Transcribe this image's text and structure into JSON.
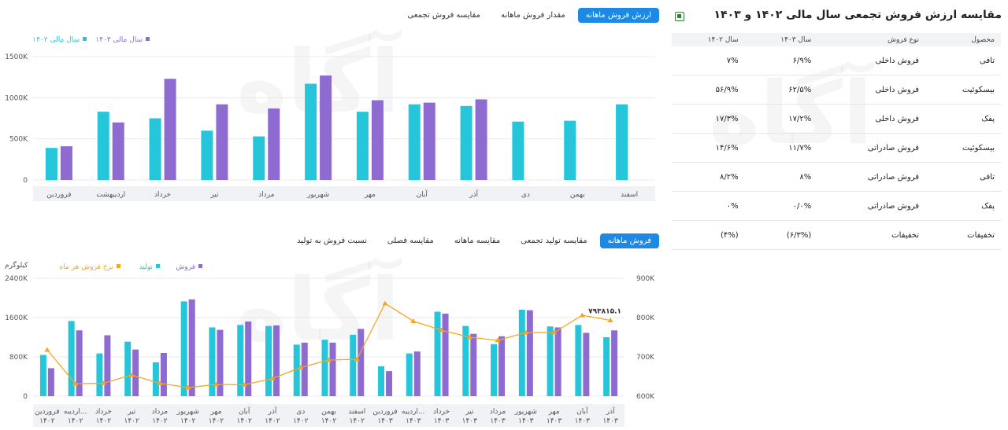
{
  "top_tabs": {
    "items": [
      "ارزش فروش ماهانه",
      "مقدار فروش ماهانه",
      "مقایسه فروش تجمعی"
    ],
    "active": 0
  },
  "bottom_tabs": {
    "items": [
      "فروش ماهانه",
      "مقایسه تولید تجمعی",
      "مقایسه ماهانه",
      "مقایسه فصلی",
      "نسبت فروش به تولید"
    ],
    "active": 0
  },
  "right_panel": {
    "title": "مقایسه ارزش فروش تجمعی سال مالی ۱۴۰۲ و ۱۴۰۳",
    "export_icon": "excel-icon",
    "columns": [
      "محصول",
      "نوع فروش",
      "سال ۱۴۰۳",
      "سال ۱۴۰۲"
    ],
    "rows": [
      [
        "تافی",
        "فروش داخلی",
        "۶/۹%",
        "۷%"
      ],
      [
        "بیسکوئیت",
        "فروش داخلی",
        "۶۲/۵%",
        "۵۶/۹%"
      ],
      [
        "پفک",
        "فروش داخلی",
        "۱۷/۲%",
        "۱۷/۳%"
      ],
      [
        "بیسکوئیت",
        "فروش صادراتی",
        "۱۱/۷%",
        "۱۴/۶%"
      ],
      [
        "تافی",
        "فروش صادراتی",
        "۸%",
        "۸/۲%"
      ],
      [
        "پفک",
        "فروش صادراتی",
        "۰/۰%",
        "۰%"
      ],
      [
        "تخفیفات",
        "تخفیفات",
        "(۶/۳%)",
        "(۴%)"
      ]
    ]
  },
  "watermark": "آگاه",
  "chart_data": [
    {
      "type": "bar",
      "legend": [
        {
          "name": "سال مالی ۱۴۰۳",
          "color": "#8e6bd1"
        },
        {
          "name": "سال مالی ۱۴۰۲",
          "color": "#26c6da"
        }
      ],
      "y_ticks": [
        "0",
        "500K",
        "1000K",
        "1500K"
      ],
      "y_tick_values": [
        0,
        500,
        1000,
        1500
      ],
      "ylim": [
        0,
        1500
      ],
      "categories": [
        "فروردین",
        "اردیبهشت",
        "خرداد",
        "تیر",
        "مرداد",
        "شهریور",
        "مهر",
        "آبان",
        "آذر",
        "دی",
        "بهمن",
        "اسفند"
      ],
      "series": [
        {
          "name": "سال مالی ۱۴۰۲",
          "color": "#26c6da",
          "values": [
            390,
            830,
            750,
            600,
            530,
            1170,
            830,
            920,
            900,
            710,
            720,
            920
          ]
        },
        {
          "name": "سال مالی ۱۴۰۳",
          "color": "#8e6bd1",
          "values": [
            410,
            700,
            1230,
            920,
            870,
            1270,
            970,
            940,
            980,
            null,
            null,
            null
          ]
        }
      ]
    },
    {
      "type": "bar",
      "legend": [
        {
          "name": "فروش",
          "color": "#8e6bd1"
        },
        {
          "name": "تولید",
          "color": "#26c6da"
        },
        {
          "name": "نرخ فروش هر ماه",
          "color": "#f5a623"
        }
      ],
      "y_left_label": "کیلوگرم",
      "y_left_ticks": [
        "0",
        "800K",
        "1600K",
        "2400K"
      ],
      "y_left_tick_values": [
        0,
        800,
        1600,
        2400
      ],
      "ylim": [
        0,
        2400
      ],
      "y_right_ticks": [
        "600K",
        "700K",
        "800K",
        "900K"
      ],
      "y_right_tick_values": [
        600,
        700,
        800,
        900
      ],
      "y2lim": [
        600,
        900
      ],
      "categories": [
        [
          "فروردین",
          "۱۴۰۲"
        ],
        [
          "اردیبه...",
          "۱۴۰۲"
        ],
        [
          "خرداد",
          "۱۴۰۲"
        ],
        [
          "تیر",
          "۱۴۰۲"
        ],
        [
          "مرداد",
          "۱۴۰۲"
        ],
        [
          "شهریور",
          "۱۴۰۲"
        ],
        [
          "مهر",
          "۱۴۰۲"
        ],
        [
          "آبان",
          "۱۴۰۲"
        ],
        [
          "آذر",
          "۱۴۰۲"
        ],
        [
          "دی",
          "۱۴۰۲"
        ],
        [
          "بهمن",
          "۱۴۰۲"
        ],
        [
          "اسفند",
          "۱۴۰۲"
        ],
        [
          "فروردین",
          "۱۴۰۳"
        ],
        [
          "اردیبه...",
          "۱۴۰۳"
        ],
        [
          "خرداد",
          "۱۴۰۳"
        ],
        [
          "تیر",
          "۱۴۰۳"
        ],
        [
          "مرداد",
          "۱۴۰۳"
        ],
        [
          "شهریور",
          "۱۴۰۳"
        ],
        [
          "مهر",
          "۱۴۰۳"
        ],
        [
          "آبان",
          "۱۴۰۳"
        ],
        [
          "آذر",
          "۱۴۰۳"
        ]
      ],
      "series": [
        {
          "name": "تولید",
          "axis": "left",
          "color": "#26c6da",
          "values": [
            840,
            1530,
            870,
            1110,
            690,
            1930,
            1400,
            1450,
            1430,
            1050,
            1150,
            1250,
            610,
            870,
            1720,
            1430,
            1060,
            1760,
            1420,
            1450,
            1200
          ]
        },
        {
          "name": "فروش",
          "axis": "left",
          "color": "#8e6bd1",
          "values": [
            570,
            1340,
            1240,
            950,
            880,
            1970,
            1350,
            1520,
            1440,
            1090,
            1090,
            1370,
            510,
            910,
            1680,
            1270,
            1220,
            1750,
            1400,
            1290,
            1340
          ]
        },
        {
          "name": "نرخ فروش هر ماه",
          "axis": "right",
          "type": "line",
          "color": "#f5a623",
          "values": [
            718,
            632,
            633,
            654,
            633,
            622,
            630,
            629,
            645,
            673,
            692,
            694,
            836,
            791,
            768,
            750,
            742,
            762,
            762,
            806,
            793
          ]
        }
      ],
      "annotation": "۷۹۳۸۱۵.۱"
    }
  ]
}
